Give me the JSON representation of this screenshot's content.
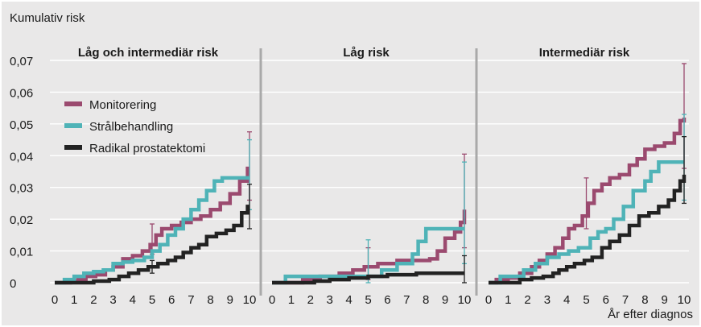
{
  "colors": {
    "background": "#e9e8e8",
    "grid": "#ffffff",
    "separator": "#a9a9a9",
    "monitorering": "#9b4a6f",
    "stralbehandling": "#4fb3b7",
    "radikal": "#222222"
  },
  "chart_data": {
    "type": "line",
    "ylabel": "Kumulativ risk",
    "xlabel": "År efter diagnos",
    "ylim": [
      0,
      0.07
    ],
    "xlim": [
      0,
      10
    ],
    "y_ticks": [
      "0",
      "0,01",
      "0,02",
      "0,03",
      "0,04",
      "0,05",
      "0,06",
      "0,07"
    ],
    "x_ticks": [
      "0",
      "1",
      "2",
      "3",
      "4",
      "5",
      "6",
      "7",
      "8",
      "9",
      "10"
    ],
    "grid": true,
    "legend_position": "top-left of first panel",
    "legend": [
      "Monitorering",
      "Strålbehandling",
      "Radikal prostatektomi"
    ],
    "panels": [
      {
        "title": "Låg och intermediär risk",
        "series": [
          {
            "name": "Monitorering",
            "color_key": "monitorering",
            "points": [
              [
                0,
                0
              ],
              [
                0.8,
                0.0005
              ],
              [
                1.2,
                0.001
              ],
              [
                1.6,
                0.002
              ],
              [
                2.1,
                0.0025
              ],
              [
                2.6,
                0.004
              ],
              [
                3.0,
                0.005
              ],
              [
                3.5,
                0.0075
              ],
              [
                4.0,
                0.0085
              ],
              [
                4.5,
                0.01
              ],
              [
                4.9,
                0.012
              ],
              [
                5.2,
                0.015
              ],
              [
                5.5,
                0.017
              ],
              [
                6.0,
                0.018
              ],
              [
                6.5,
                0.019
              ],
              [
                7.0,
                0.02
              ],
              [
                7.5,
                0.021
              ],
              [
                8.0,
                0.023
              ],
              [
                8.5,
                0.025
              ],
              [
                9.0,
                0.028
              ],
              [
                9.5,
                0.032
              ],
              [
                9.9,
                0.036
              ],
              [
                10,
                0.036
              ]
            ],
            "error_bars": [
              {
                "x": 5,
                "low": 0.009,
                "high": 0.0185
              },
              {
                "x": 10,
                "low": 0.026,
                "high": 0.0475
              }
            ]
          },
          {
            "name": "Strålbehandling",
            "color_key": "stralbehandling",
            "points": [
              [
                0,
                0
              ],
              [
                0.5,
                0.001
              ],
              [
                1.0,
                0.002
              ],
              [
                1.5,
                0.003
              ],
              [
                2.0,
                0.0035
              ],
              [
                2.5,
                0.004
              ],
              [
                3.0,
                0.006
              ],
              [
                3.5,
                0.0065
              ],
              [
                4.0,
                0.007
              ],
              [
                4.6,
                0.008
              ],
              [
                5.0,
                0.01
              ],
              [
                5.4,
                0.012
              ],
              [
                5.8,
                0.015
              ],
              [
                6.2,
                0.017
              ],
              [
                6.6,
                0.02
              ],
              [
                7.0,
                0.023
              ],
              [
                7.4,
                0.026
              ],
              [
                7.8,
                0.029
              ],
              [
                8.2,
                0.032
              ],
              [
                8.6,
                0.033
              ],
              [
                10,
                0.033
              ]
            ],
            "error_bars": [
              {
                "x": 10,
                "low": 0.023,
                "high": 0.045
              }
            ]
          },
          {
            "name": "Radikal prostatektomi",
            "color_key": "radikal",
            "points": [
              [
                0,
                0
              ],
              [
                1.4,
                0
              ],
              [
                2.0,
                0.0005
              ],
              [
                2.8,
                0.001
              ],
              [
                3.3,
                0.002
              ],
              [
                3.8,
                0.003
              ],
              [
                4.3,
                0.004
              ],
              [
                4.8,
                0.005
              ],
              [
                5.3,
                0.006
              ],
              [
                5.8,
                0.007
              ],
              [
                6.2,
                0.008
              ],
              [
                6.6,
                0.0095
              ],
              [
                7.0,
                0.011
              ],
              [
                7.4,
                0.012
              ],
              [
                7.8,
                0.0145
              ],
              [
                8.3,
                0.0155
              ],
              [
                8.8,
                0.0165
              ],
              [
                9.2,
                0.018
              ],
              [
                9.6,
                0.022
              ],
              [
                9.9,
                0.024
              ],
              [
                10,
                0.024
              ]
            ],
            "error_bars": [
              {
                "x": 5,
                "low": 0.003,
                "high": 0.007
              },
              {
                "x": 10,
                "low": 0.017,
                "high": 0.031
              }
            ]
          }
        ]
      },
      {
        "title": "Låg risk",
        "series": [
          {
            "name": "Monitorering",
            "color_key": "monitorering",
            "points": [
              [
                0,
                0
              ],
              [
                1.2,
                0
              ],
              [
                1.6,
                0.001
              ],
              [
                2.5,
                0.002
              ],
              [
                3.5,
                0.003
              ],
              [
                4.2,
                0.004
              ],
              [
                4.8,
                0.005
              ],
              [
                5.5,
                0.006
              ],
              [
                6.5,
                0.007
              ],
              [
                7.5,
                0.007
              ],
              [
                8.2,
                0.0075
              ],
              [
                8.6,
                0.01
              ],
              [
                9.0,
                0.014
              ],
              [
                9.5,
                0.016
              ],
              [
                9.8,
                0.019
              ],
              [
                10,
                0.023
              ]
            ],
            "error_bars": [
              {
                "x": 5,
                "low": 0.001,
                "high": 0.011
              },
              {
                "x": 10,
                "low": 0.011,
                "high": 0.0405
              }
            ]
          },
          {
            "name": "Strålbehandling",
            "color_key": "stralbehandling",
            "points": [
              [
                0,
                0
              ],
              [
                0.7,
                0.002
              ],
              [
                2.5,
                0.002
              ],
              [
                5.0,
                0.002
              ],
              [
                5.7,
                0.004
              ],
              [
                6.5,
                0.006
              ],
              [
                7.3,
                0.009
              ],
              [
                7.6,
                0.013
              ],
              [
                8.0,
                0.017
              ],
              [
                10,
                0.017
              ]
            ],
            "error_bars": [
              {
                "x": 5,
                "low": 0,
                "high": 0.0135
              },
              {
                "x": 10,
                "low": 0.006,
                "high": 0.038
              }
            ]
          },
          {
            "name": "Radikal prostatektomi",
            "color_key": "radikal",
            "points": [
              [
                0,
                0
              ],
              [
                1.5,
                0
              ],
              [
                2.2,
                0.0005
              ],
              [
                3.0,
                0.001
              ],
              [
                4.0,
                0.0015
              ],
              [
                5.0,
                0.002
              ],
              [
                6.0,
                0.0025
              ],
              [
                7.5,
                0.003
              ],
              [
                10,
                0.003
              ]
            ],
            "error_bars": [
              {
                "x": 10,
                "low": 0,
                "high": 0.0085
              }
            ]
          }
        ]
      },
      {
        "title": "Intermediär risk",
        "series": [
          {
            "name": "Monitorering",
            "color_key": "monitorering",
            "points": [
              [
                0,
                0
              ],
              [
                0.4,
                0.001
              ],
              [
                1.0,
                0.0015
              ],
              [
                1.6,
                0.003
              ],
              [
                2.2,
                0.005
              ],
              [
                2.6,
                0.007
              ],
              [
                3.0,
                0.009
              ],
              [
                3.4,
                0.011
              ],
              [
                3.8,
                0.014
              ],
              [
                4.1,
                0.017
              ],
              [
                4.4,
                0.018
              ],
              [
                4.8,
                0.021
              ],
              [
                5.1,
                0.025
              ],
              [
                5.4,
                0.029
              ],
              [
                5.8,
                0.031
              ],
              [
                6.2,
                0.033
              ],
              [
                6.7,
                0.034
              ],
              [
                7.2,
                0.037
              ],
              [
                7.6,
                0.039
              ],
              [
                8.0,
                0.042
              ],
              [
                8.5,
                0.043
              ],
              [
                9.0,
                0.044
              ],
              [
                9.5,
                0.047
              ],
              [
                9.8,
                0.051
              ],
              [
                10,
                0.052
              ]
            ],
            "error_bars": [
              {
                "x": 5,
                "low": 0.017,
                "high": 0.033
              },
              {
                "x": 10,
                "low": 0.036,
                "high": 0.069
              }
            ]
          },
          {
            "name": "Strålbehandling",
            "color_key": "stralbehandling",
            "points": [
              [
                0,
                0
              ],
              [
                0.6,
                0.002
              ],
              [
                1.2,
                0.002
              ],
              [
                1.8,
                0.004
              ],
              [
                2.4,
                0.006
              ],
              [
                3.0,
                0.008
              ],
              [
                3.6,
                0.009
              ],
              [
                4.1,
                0.01
              ],
              [
                4.6,
                0.011
              ],
              [
                5.2,
                0.014
              ],
              [
                5.6,
                0.016
              ],
              [
                6.0,
                0.017
              ],
              [
                6.4,
                0.02
              ],
              [
                6.9,
                0.024
              ],
              [
                7.4,
                0.029
              ],
              [
                8.0,
                0.032
              ],
              [
                8.3,
                0.035
              ],
              [
                8.7,
                0.038
              ],
              [
                10,
                0.038
              ]
            ],
            "error_bars": [
              {
                "x": 10,
                "low": 0.026,
                "high": 0.053
              }
            ]
          },
          {
            "name": "Radikal prostatektomi",
            "color_key": "radikal",
            "points": [
              [
                0,
                0
              ],
              [
                1.0,
                0
              ],
              [
                1.6,
                0.001
              ],
              [
                2.2,
                0.0015
              ],
              [
                2.8,
                0.002
              ],
              [
                3.3,
                0.003
              ],
              [
                3.6,
                0.004
              ],
              [
                4.0,
                0.005
              ],
              [
                4.4,
                0.006
              ],
              [
                4.9,
                0.007
              ],
              [
                5.3,
                0.008
              ],
              [
                5.8,
                0.011
              ],
              [
                6.2,
                0.013
              ],
              [
                6.7,
                0.015
              ],
              [
                7.2,
                0.018
              ],
              [
                7.7,
                0.021
              ],
              [
                8.2,
                0.022
              ],
              [
                8.7,
                0.024
              ],
              [
                9.2,
                0.026
              ],
              [
                9.5,
                0.029
              ],
              [
                9.8,
                0.032
              ],
              [
                10,
                0.034
              ]
            ],
            "error_bars": [
              {
                "x": 10,
                "low": 0.025,
                "high": 0.046
              }
            ]
          }
        ]
      }
    ]
  }
}
